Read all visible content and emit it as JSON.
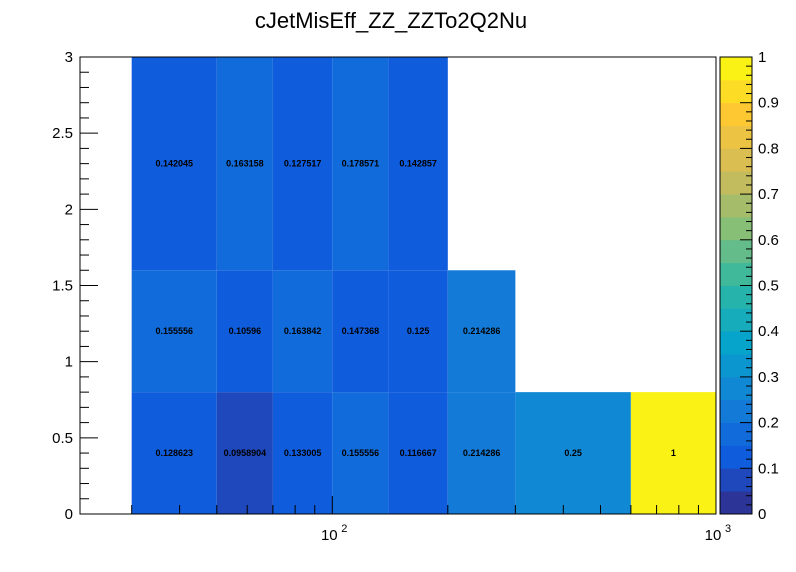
{
  "chart_data": {
    "type": "heatmap",
    "title": "cJetMisEff_ZZ_ZZTo2Q2Nu",
    "xlabel": "",
    "ylabel": "",
    "x_scale": "log",
    "xlim": [
      22,
      1000
    ],
    "ylim": [
      0,
      3
    ],
    "x_edges": [
      30,
      50,
      70,
      100,
      140,
      200,
      300,
      600,
      1000
    ],
    "y_edges": [
      0,
      0.8,
      1.6,
      3.0
    ],
    "values": [
      [
        0.128623,
        0.0958904,
        0.133005,
        0.155556,
        0.116667,
        0.214286,
        0.25,
        1
      ],
      [
        0.155556,
        0.10596,
        0.163842,
        0.147368,
        0.125,
        0.214286,
        null,
        null
      ],
      [
        0.142045,
        0.163158,
        0.127517,
        0.178571,
        0.142857,
        null,
        null,
        null
      ]
    ],
    "cell_labels": [
      [
        "0.128623",
        "0.0958904",
        "0.133005",
        "0.155556",
        "0.116667",
        "0.214286",
        "0.25",
        "1"
      ],
      [
        "0.155556",
        "0.10596",
        "0.163842",
        "0.147368",
        "0.125",
        "0.214286",
        "",
        ""
      ],
      [
        "0.142045",
        "0.163158",
        "0.127517",
        "0.178571",
        "0.142857",
        "",
        "",
        ""
      ]
    ],
    "y_ticks": [
      "0",
      "0.5",
      "1",
      "1.5",
      "2",
      "2.5",
      "3"
    ],
    "x_ticks": [
      {
        "base": "10",
        "exp": "2"
      },
      {
        "base": "10",
        "exp": "3"
      }
    ],
    "colorbar": {
      "min": 0,
      "max": 1,
      "ticks": [
        "0",
        "0.1",
        "0.2",
        "0.3",
        "0.4",
        "0.5",
        "0.6",
        "0.7",
        "0.8",
        "0.9",
        "1"
      ]
    },
    "palette": [
      "#352a87",
      "#0f5cdd",
      "#1481d6",
      "#06a4ca",
      "#2eb7a4",
      "#87bf77",
      "#d1bb59",
      "#fec832",
      "#f9fb0e"
    ],
    "grid": false,
    "legend": "colorbar-right"
  }
}
